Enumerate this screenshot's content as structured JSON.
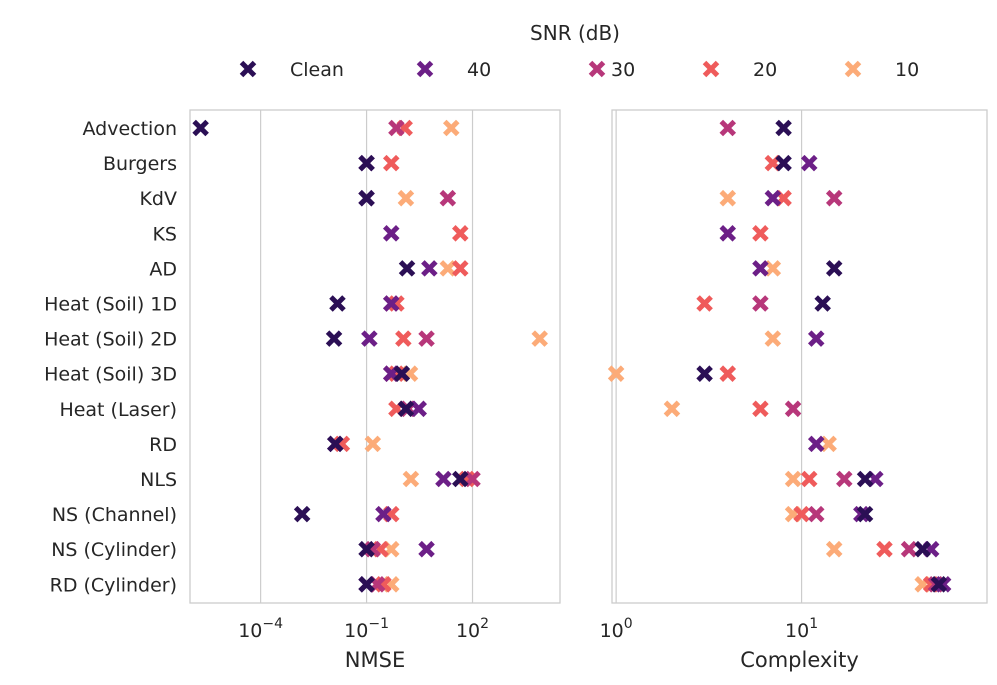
{
  "chart_data": {
    "type": "scatter",
    "legend": {
      "title": "SNR (dB)",
      "entries": [
        {
          "label": "Clean",
          "color": "#2b0f55"
        },
        {
          "label": "40",
          "color": "#6c1f87"
        },
        {
          "label": "30",
          "color": "#b7377a"
        },
        {
          "label": "20",
          "color": "#ef5b5b"
        },
        {
          "label": "10",
          "color": "#fcab78"
        }
      ],
      "placement": "top-center"
    },
    "categories": [
      "Advection",
      "Burgers",
      "KdV",
      "KS",
      "AD",
      "Heat (Soil) 1D",
      "Heat (Soil) 2D",
      "Heat (Soil) 3D",
      "Heat (Laser)",
      "RD",
      "NLS",
      "NS (Channel)",
      "NS (Cylinder)",
      "RD (Cylinder)"
    ],
    "panels": [
      {
        "xlabel": "NMSE",
        "xscale": "log",
        "xlim": [
          1e-06,
          30000
        ],
        "ticks": [
          {
            "value": 0.0001,
            "base": "10",
            "exp": "−4"
          },
          {
            "value": 0.1,
            "base": "10",
            "exp": "−1"
          },
          {
            "value": 100,
            "base": "10",
            "exp": "2"
          }
        ],
        "series": [
          {
            "name": "Clean",
            "values": [
              2e-06,
              0.1,
              0.1,
              null,
              1.4,
              0.015,
              0.012,
              1.0,
              1.3,
              0.013,
              45,
              0.0015,
              0.1,
              0.1
            ]
          },
          {
            "name": "40",
            "values": [
              null,
              0.1,
              0.1,
              0.5,
              6,
              0.5,
              0.12,
              0.5,
              3,
              0.013,
              15,
              0.3,
              5,
              0.1
            ]
          },
          {
            "name": "30",
            "values": [
              0.7,
              null,
              20,
              null,
              null,
              0.5,
              5,
              0.5,
              1.5,
              null,
              100,
              null,
              0.15,
              0.2
            ]
          },
          {
            "name": "20",
            "values": [
              1.2,
              0.5,
              null,
              45,
              45,
              0.7,
              1.1,
              0.7,
              0.7,
              0.02,
              70,
              0.5,
              0.25,
              0.3
            ]
          },
          {
            "name": "10",
            "values": [
              25,
              null,
              1.3,
              null,
              20,
              null,
              8000,
              1.7,
              null,
              0.15,
              1.8,
              null,
              0.5,
              0.5
            ]
          }
        ]
      },
      {
        "xlabel": "Complexity",
        "xscale": "log",
        "xlim": [
          0.95,
          100
        ],
        "ticks": [
          {
            "value": 1,
            "base": "10",
            "exp": "0"
          },
          {
            "value": 10,
            "base": "10",
            "exp": "1"
          }
        ],
        "series": [
          {
            "name": "Clean",
            "values": [
              8,
              8,
              null,
              null,
              15,
              13,
              null,
              3,
              null,
              null,
              22,
              22,
              45,
              55
            ]
          },
          {
            "name": "40",
            "values": [
              null,
              11,
              7,
              4,
              6,
              null,
              12,
              null,
              null,
              12,
              25,
              21,
              50,
              58
            ]
          },
          {
            "name": "30",
            "values": [
              4,
              null,
              15,
              null,
              null,
              6,
              null,
              null,
              9,
              null,
              17,
              12,
              38,
              53
            ]
          },
          {
            "name": "20",
            "values": [
              null,
              7,
              8,
              6,
              null,
              3,
              null,
              4,
              6,
              null,
              11,
              10,
              28,
              50
            ]
          },
          {
            "name": "10",
            "values": [
              null,
              null,
              4,
              null,
              7,
              null,
              7,
              1,
              2,
              14,
              9,
              9,
              15,
              45
            ]
          }
        ]
      }
    ]
  }
}
